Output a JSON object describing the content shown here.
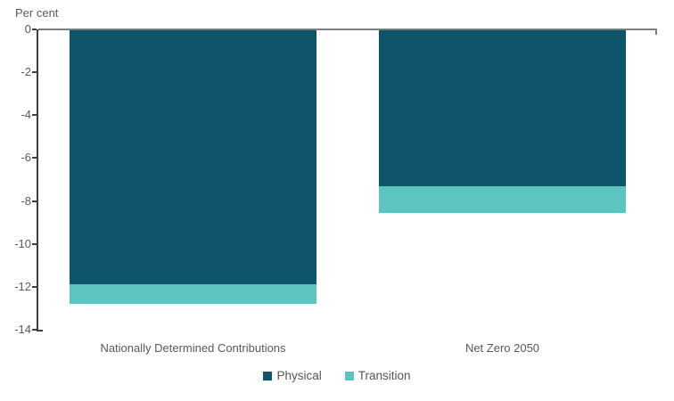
{
  "chart": {
    "unit_label": "Per cent",
    "colors": {
      "physical": "#0e556c",
      "transition": "#5cc5c0",
      "axis": "#3f3f3f",
      "zero_line": "#7d7d7d",
      "text": "#5a5a5a"
    }
  },
  "chart_data": {
    "type": "bar",
    "stacked": true,
    "orientation": "vertical",
    "title": "",
    "xlabel": "",
    "ylabel": "Per cent",
    "unit_label": "Per cent",
    "categories": [
      "Nationally Determined Contributions",
      "Net Zero 2050"
    ],
    "series": [
      {
        "name": "Physical",
        "color": "#0e556c",
        "values": [
          -11.9,
          -7.3
        ]
      },
      {
        "name": "Transition",
        "color": "#5cc5c0",
        "values": [
          -0.9,
          -1.25
        ]
      }
    ],
    "stack_totals": [
      -12.8,
      -8.55
    ],
    "ylim": [
      -14,
      0
    ],
    "y_ticks": [
      0,
      -2,
      -4,
      -6,
      -8,
      -10,
      -12,
      -14
    ],
    "grid": false,
    "legend_position": "bottom"
  }
}
